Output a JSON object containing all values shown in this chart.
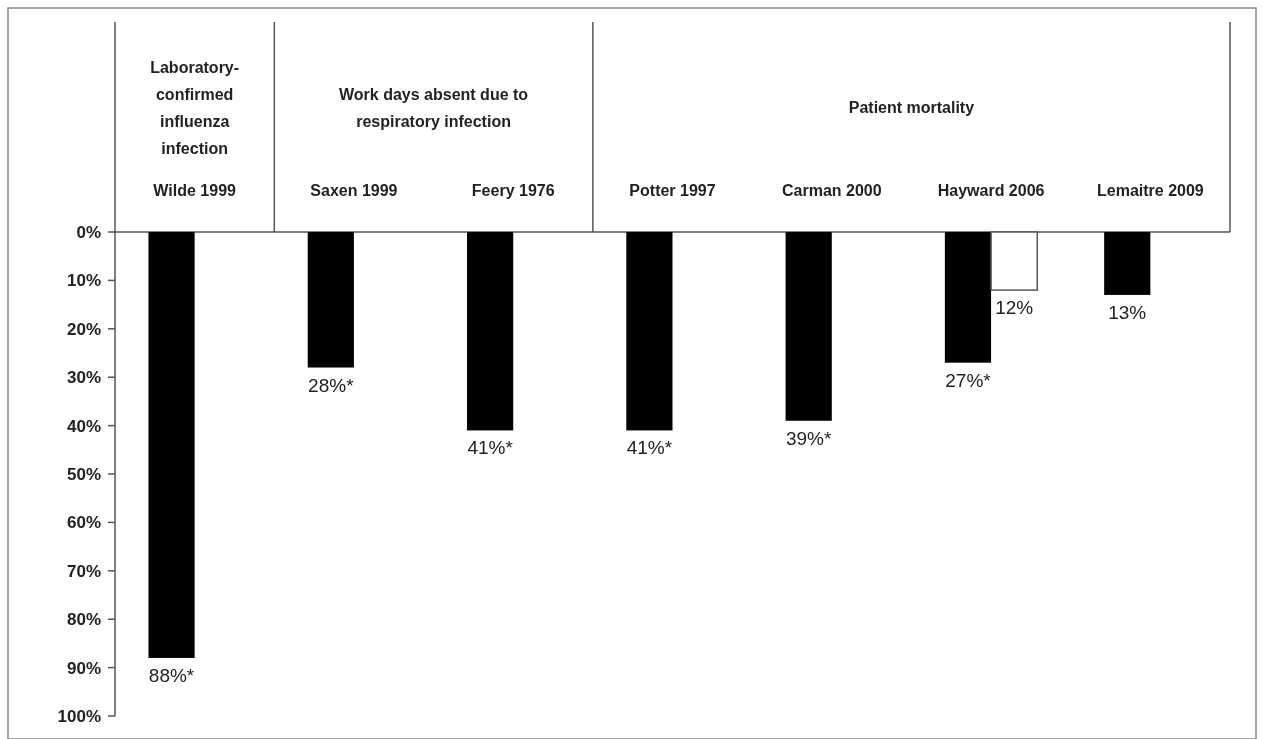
{
  "chart_data": {
    "type": "bar",
    "categories": [
      "Wilde 1999",
      "Saxen 1999",
      "Feery 1976",
      "Potter 1997",
      "Carman 2000",
      "Hayward 2006",
      "Lemaitre 2009"
    ],
    "annotations": [
      "Laboratory-confirmed influenza infection",
      "Work days absent due to respiratory infection",
      "Patient mortality"
    ],
    "series": [
      {
        "color": "#000000",
        "values": [
          88,
          28,
          41,
          41,
          39,
          27,
          13
        ],
        "value_labels": [
          "88%*",
          "28%*",
          "41%*",
          "41%*",
          "39%*",
          "27%*",
          "13%"
        ]
      },
      {
        "color": "#ffffff",
        "values": [
          null,
          null,
          null,
          null,
          null,
          12,
          null
        ],
        "value_labels": [
          null,
          null,
          null,
          null,
          null,
          "12%",
          null
        ]
      }
    ],
    "ylim": [
      100,
      0
    ],
    "yticks": [
      {
        "value": 0,
        "label": "0%"
      },
      {
        "value": 10,
        "label": "10%"
      },
      {
        "value": 20,
        "label": "20%"
      },
      {
        "value": 30,
        "label": "30%"
      },
      {
        "value": 40,
        "label": "40%"
      },
      {
        "value": 50,
        "label": "50%"
      },
      {
        "value": 60,
        "label": "60%"
      },
      {
        "value": 70,
        "label": "70%"
      },
      {
        "value": 80,
        "label": "80%"
      },
      {
        "value": 90,
        "label": "90%"
      },
      {
        "value": 100,
        "label": "100%"
      }
    ],
    "grid": false
  }
}
